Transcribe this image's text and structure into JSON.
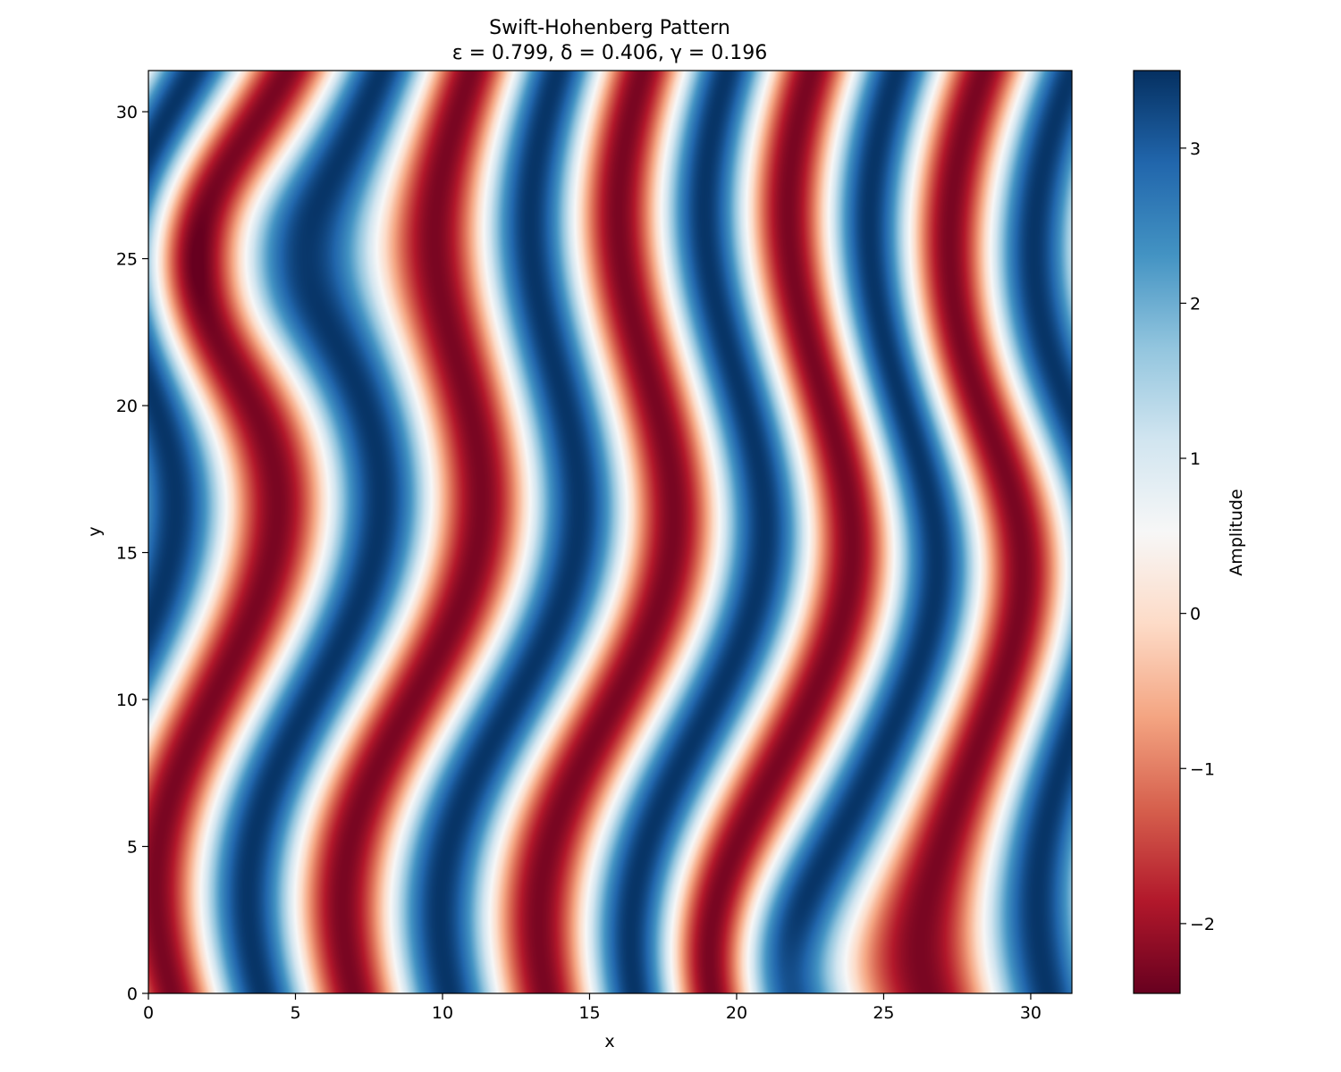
{
  "chart_data": {
    "type": "heatmap",
    "title": "Swift-Hohenberg Pattern",
    "subtitle": "ε = 0.799, δ = 0.406, γ = 0.196",
    "xlabel": "x",
    "ylabel": "y",
    "xlim": [
      0,
      31.4
    ],
    "ylim": [
      0,
      31.4
    ],
    "xticks": [
      0,
      5,
      10,
      15,
      20,
      25,
      30
    ],
    "yticks": [
      0,
      5,
      10,
      15,
      20,
      25,
      30
    ],
    "colorbar": {
      "label": "Amplitude",
      "range": [
        -2.45,
        3.5
      ],
      "ticks": [
        -2,
        -1,
        0,
        1,
        2,
        3
      ],
      "tick_labels": [
        "−2",
        "−1",
        "0",
        "1",
        "2",
        "3"
      ],
      "colormap": "RdBu",
      "colors": [
        "#67001f",
        "#b2182b",
        "#d6604d",
        "#f4a582",
        "#fddbc7",
        "#f7f7f7",
        "#d1e5f0",
        "#92c5de",
        "#4393c3",
        "#2166ac",
        "#053061"
      ]
    },
    "grid": false,
    "pattern": "labyrinthine stripe pattern with period ≈ 6.28; red (low, ≈ −2.3) and blue (high, ≈ 3.4) bands; localized minima near (2.8, 24.9) and (22.2, 0.3)"
  }
}
